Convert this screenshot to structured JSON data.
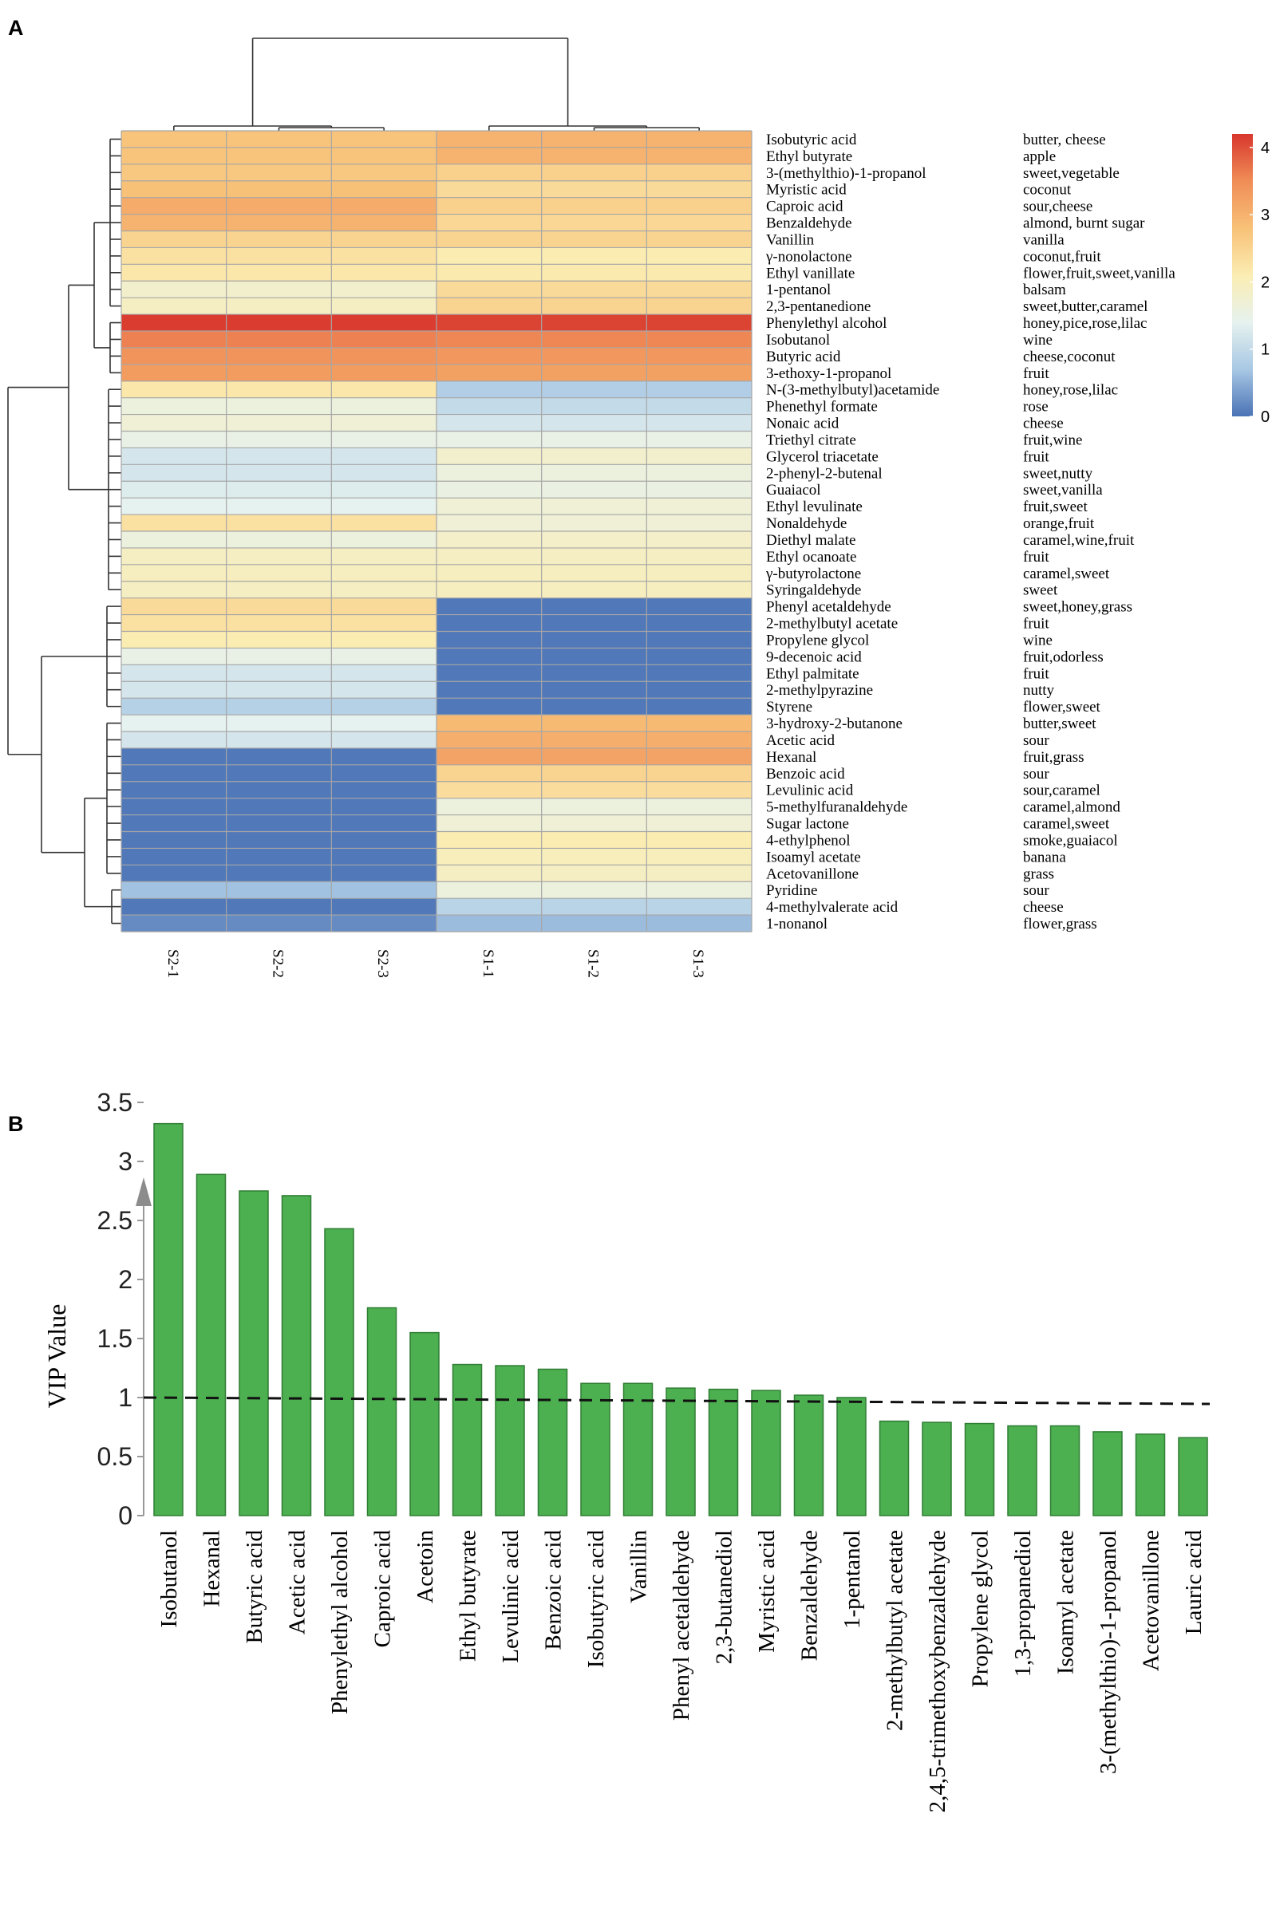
{
  "panels": {
    "a": "A",
    "b": "B"
  },
  "chart_data": [
    {
      "type": "heatmap",
      "panel": "A",
      "title": "",
      "columns": [
        "S2-1",
        "S2-2",
        "S2-3",
        "S1-1",
        "S1-2",
        "S1-3"
      ],
      "color_scale": {
        "range": [
          0,
          4.2
        ],
        "ticks": [
          0,
          1,
          2,
          3,
          4
        ],
        "tick_labels": [
          "0",
          "1",
          "2",
          "3",
          "4"
        ],
        "colors": [
          "#4a72b5",
          "#a8c8e4",
          "#e6f2ef",
          "#fbedb2",
          "#f8c178",
          "#f08d57",
          "#d8372d"
        ]
      },
      "rows": [
        {
          "compound": "Isobutyric acid",
          "odor": "butter, cheese",
          "s2": 2.75,
          "s1": 3.0
        },
        {
          "compound": "Ethyl butyrate",
          "odor": "apple",
          "s2": 2.75,
          "s1": 3.0
        },
        {
          "compound": "3-(methylthio)-1-propanol",
          "odor": "sweet,vegetable",
          "s2": 2.7,
          "s1": 2.55
        },
        {
          "compound": "Myristic acid",
          "odor": "coconut",
          "s2": 2.8,
          "s1": 2.4
        },
        {
          "compound": "Caproic acid",
          "odor": "sour,cheese",
          "s2": 3.1,
          "s1": 2.55
        },
        {
          "compound": "Benzaldehyde",
          "odor": "almond, burnt sugar",
          "s2": 3.0,
          "s1": 2.45
        },
        {
          "compound": "Vanillin",
          "odor": "vanilla",
          "s2": 2.5,
          "s1": 2.5
        },
        {
          "compound": "γ-nonolactone",
          "odor": "coconut,fruit",
          "s2": 2.3,
          "s1": 2.1
        },
        {
          "compound": "Ethyl vanillate",
          "odor": "flower,fruit,sweet,vanilla",
          "s2": 2.2,
          "s1": 2.15
        },
        {
          "compound": "1-pentanol",
          "odor": "balsam",
          "s2": 1.8,
          "s1": 2.4
        },
        {
          "compound": "2,3-pentanedione",
          "odor": "sweet,butter,caramel",
          "s2": 1.9,
          "s1": 2.5
        },
        {
          "compound": "Phenylethyl alcohol",
          "odor": "honey,pice,rose,lilac",
          "s2": 4.15,
          "s1": 4.1
        },
        {
          "compound": "Isobutanol",
          "odor": "wine",
          "s2": 3.6,
          "s1": 3.55
        },
        {
          "compound": "Butyric acid",
          "odor": "cheese,coconut",
          "s2": 3.4,
          "s1": 3.35
        },
        {
          "compound": "3-ethoxy-1-propanol",
          "odor": "fruit",
          "s2": 3.3,
          "s1": 3.25
        },
        {
          "compound": "N-(3-methylbutyl)acetamide",
          "odor": "honey,rose,lilac",
          "s2": 2.2,
          "s1": 0.8
        },
        {
          "compound": "Phenethyl formate",
          "odor": "rose",
          "s2": 1.6,
          "s1": 1.0
        },
        {
          "compound": "Nonaic acid",
          "odor": "cheese",
          "s2": 1.7,
          "s1": 1.2
        },
        {
          "compound": "Triethyl citrate",
          "odor": "fruit,wine",
          "s2": 1.5,
          "s1": 1.5
        },
        {
          "compound": "Glycerol triacetate",
          "odor": "fruit",
          "s2": 1.2,
          "s1": 1.8
        },
        {
          "compound": "2-phenyl-2-butenal",
          "odor": "sweet,nutty",
          "s2": 1.2,
          "s1": 1.6
        },
        {
          "compound": "Guaiacol",
          "odor": "sweet,vanilla",
          "s2": 1.3,
          "s1": 1.55
        },
        {
          "compound": "Ethyl levulinate",
          "odor": "fruit,sweet",
          "s2": 1.4,
          "s1": 1.7
        },
        {
          "compound": "Nonaldehyde",
          "odor": "orange,fruit",
          "s2": 2.3,
          "s1": 1.7
        },
        {
          "compound": "Diethyl malate",
          "odor": "caramel,wine,fruit",
          "s2": 1.6,
          "s1": 1.85
        },
        {
          "compound": "Ethyl ocanoate",
          "odor": "fruit",
          "s2": 1.9,
          "s1": 1.9
        },
        {
          "compound": "γ-butyrolactone",
          "odor": "caramel,sweet",
          "s2": 1.95,
          "s1": 1.95
        },
        {
          "compound": "Syringaldehyde",
          "odor": "sweet",
          "s2": 1.9,
          "s1": 1.95
        },
        {
          "compound": "Phenyl acetaldehyde",
          "odor": "sweet,honey,grass",
          "s2": 2.4,
          "s1": 0.05
        },
        {
          "compound": "2-methylbutyl acetate",
          "odor": "fruit",
          "s2": 2.3,
          "s1": 0.05
        },
        {
          "compound": "Propylene glycol",
          "odor": "wine",
          "s2": 2.1,
          "s1": 0.05
        },
        {
          "compound": "9-decenoic acid",
          "odor": "fruit,odorless",
          "s2": 1.5,
          "s1": 0.05
        },
        {
          "compound": "Ethyl palmitate",
          "odor": "fruit",
          "s2": 1.2,
          "s1": 0.05
        },
        {
          "compound": "2-methylpyrazine",
          "odor": "nutty",
          "s2": 1.2,
          "s1": 0.05
        },
        {
          "compound": "Styrene",
          "odor": "flower,sweet",
          "s2": 0.85,
          "s1": 0.05
        },
        {
          "compound": "3-hydroxy-2-butanone",
          "odor": "butter,sweet",
          "s2": 1.4,
          "s1": 2.9
        },
        {
          "compound": "Acetic acid",
          "odor": "sour",
          "s2": 1.2,
          "s1": 3.05
        },
        {
          "compound": "Hexanal",
          "odor": "fruit,grass",
          "s2": 0.05,
          "s1": 3.2
        },
        {
          "compound": "Benzoic acid",
          "odor": "sour",
          "s2": 0.05,
          "s1": 2.5
        },
        {
          "compound": "Levulinic acid",
          "odor": "sour,caramel",
          "s2": 0.05,
          "s1": 2.35
        },
        {
          "compound": "5-methylfuranaldehyde",
          "odor": "caramel,almond",
          "s2": 0.05,
          "s1": 1.6
        },
        {
          "compound": "Sugar lactone",
          "odor": "caramel,sweet",
          "s2": 0.05,
          "s1": 1.7
        },
        {
          "compound": "4-ethylphenol",
          "odor": "smoke,guaiacol",
          "s2": 0.05,
          "s1": 2.1
        },
        {
          "compound": "Isoamyl acetate",
          "odor": "banana",
          "s2": 0.05,
          "s1": 2.0
        },
        {
          "compound": "Acetovanillone",
          "odor": "grass",
          "s2": 0.05,
          "s1": 1.9
        },
        {
          "compound": "Pyridine",
          "odor": "sour",
          "s2": 0.65,
          "s1": 1.6
        },
        {
          "compound": "4-methylvalerate acid",
          "odor": "cheese",
          "s2": 0.05,
          "s1": 0.9
        },
        {
          "compound": "1-nonanol",
          "odor": "flower,grass",
          "s2": 0.2,
          "s1": 0.6
        }
      ]
    },
    {
      "type": "bar",
      "panel": "B",
      "title": "",
      "xlabel": "",
      "ylabel": "VIP Value",
      "ylim": [
        0,
        3.5
      ],
      "yticks": [
        0,
        0.5,
        1,
        1.5,
        2,
        2.5,
        3,
        3.5
      ],
      "ytick_labels": [
        "0",
        "0.5",
        "1",
        "1.5",
        "2",
        "2.5",
        "3",
        "3.5"
      ],
      "threshold": 1,
      "bar_color": "#4caf50",
      "categories": [
        "Isobutanol",
        "Hexanal",
        "Butyric acid",
        "Acetic acid",
        "Phenylethyl alcohol",
        "Caproic acid",
        "Acetoin",
        "Ethyl butyrate",
        "Levulinic acid",
        "Benzoic acid",
        "Isobutyric acid",
        "Vanillin",
        "Phenyl acetaldehyde",
        "2,3-butanediol",
        "Myristic acid",
        "Benzaldehyde",
        "1-pentanol",
        "2-methylbutyl acetate",
        "2,4,5-trimethoxybenzaldehyde",
        "Propylene glycol",
        "1,3-propanediol",
        "Isoamyl acetate",
        "3-(methylthio)-1-propanol",
        "Acetovanillone",
        "Lauric acid"
      ],
      "values": [
        3.32,
        2.89,
        2.75,
        2.71,
        2.43,
        1.76,
        1.55,
        1.28,
        1.27,
        1.24,
        1.12,
        1.12,
        1.08,
        1.07,
        1.06,
        1.02,
        1.0,
        0.8,
        0.79,
        0.78,
        0.76,
        0.76,
        0.71,
        0.69,
        0.66
      ]
    }
  ]
}
